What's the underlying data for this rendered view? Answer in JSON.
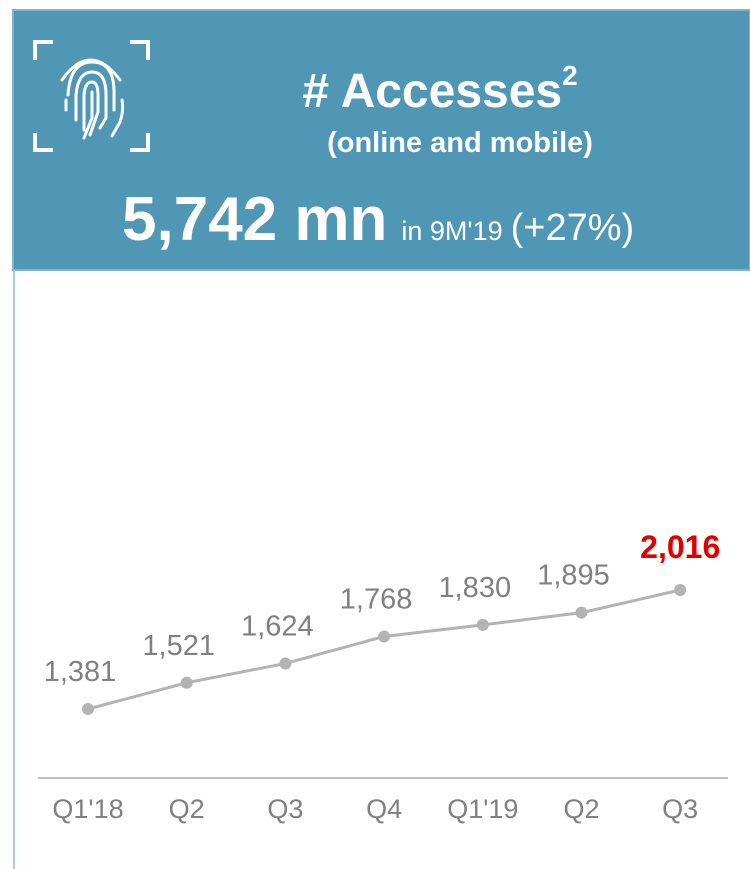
{
  "header": {
    "title": "# Accesses",
    "title_superscript": "2",
    "subtitle": "(online and mobile)",
    "headline": "5,742 mn",
    "period": "in 9M'19",
    "change": "(+27%)"
  },
  "chart_data": {
    "type": "line",
    "categories": [
      "Q1'18",
      "Q2",
      "Q3",
      "Q4",
      "Q1'19",
      "Q2",
      "Q3"
    ],
    "values": [
      1381,
      1521,
      1624,
      1768,
      1830,
      1895,
      2016
    ],
    "value_labels": [
      "1,381",
      "1,521",
      "1,624",
      "1,768",
      "1,830",
      "1,895",
      "2,016"
    ],
    "color": "#b3b3b3",
    "label_color": "#808080",
    "highlight_color": "#e00000",
    "highlight_index": 6
  }
}
